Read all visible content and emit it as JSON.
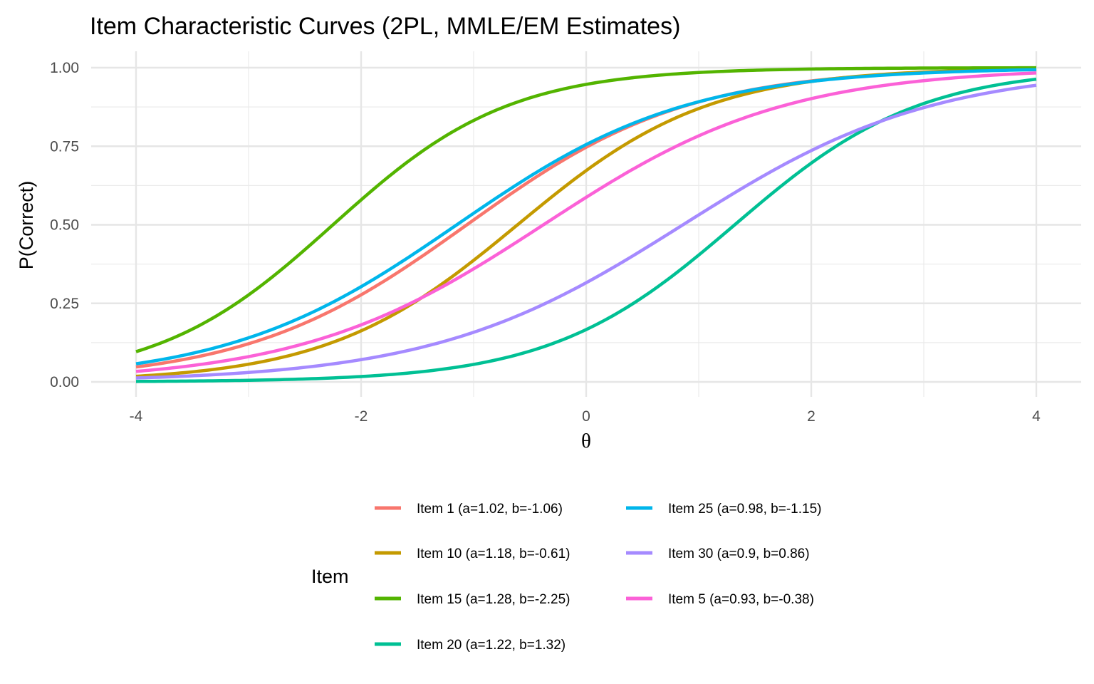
{
  "chart_data": {
    "type": "line",
    "title": "Item Characteristic Curves (2PL, MMLE/EM Estimates)",
    "xlabel": "θ",
    "ylabel": "P(Correct)",
    "xlim": [
      -4,
      4
    ],
    "ylim": [
      0,
      1
    ],
    "x_ticks": [
      -4,
      -2,
      0,
      2,
      4
    ],
    "x_tick_labels": [
      "-4",
      "-2",
      "0",
      "2",
      "4"
    ],
    "y_ticks": [
      0,
      0.25,
      0.5,
      0.75,
      1
    ],
    "y_tick_labels": [
      "0.00",
      "0.25",
      "0.50",
      "0.75",
      "1.00"
    ],
    "grid": true,
    "model": "2PL logistic: P = 1 / (1 + exp(-a(θ - b)))",
    "legend": {
      "title": "Item",
      "placement": "bottom"
    },
    "series": [
      {
        "name": "Item 1 (a=1.02, b=-1.06)",
        "a": 1.02,
        "b": -1.06,
        "color": "#F8766D"
      },
      {
        "name": "Item 10 (a=1.18, b=-0.61)",
        "a": 1.18,
        "b": -0.61,
        "color": "#C49A00"
      },
      {
        "name": "Item 15 (a=1.28, b=-2.25)",
        "a": 1.28,
        "b": -2.25,
        "color": "#53B400"
      },
      {
        "name": "Item 20 (a=1.22, b=1.32)",
        "a": 1.22,
        "b": 1.32,
        "color": "#00C094"
      },
      {
        "name": "Item 25 (a=0.98, b=-1.15)",
        "a": 0.98,
        "b": -1.15,
        "color": "#00B6EB"
      },
      {
        "name": "Item 30 (a=0.9, b=0.86)",
        "a": 0.9,
        "b": 0.86,
        "color": "#A58AFF"
      },
      {
        "name": "Item 5 (a=0.93, b=-0.38)",
        "a": 0.93,
        "b": -0.38,
        "color": "#FB61D7"
      }
    ]
  }
}
